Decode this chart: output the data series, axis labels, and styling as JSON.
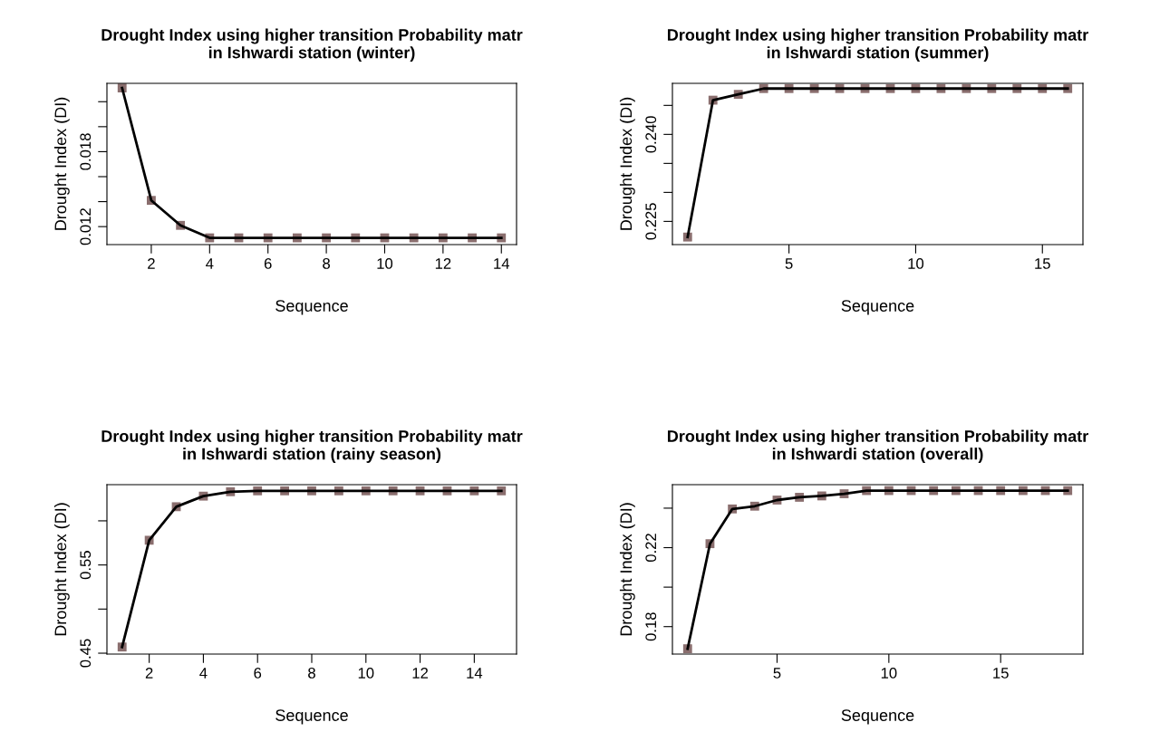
{
  "chart_data": [
    {
      "type": "line",
      "title": "Drought Index using higher transition Probability matr\nin Ishwardi station (winter)",
      "xlabel": "Sequence",
      "ylabel": "Drought Index (DI)",
      "x": [
        1,
        2,
        3,
        4,
        5,
        6,
        7,
        8,
        9,
        10,
        11,
        12,
        13,
        14
      ],
      "xlim": [
        0.48,
        14.52
      ],
      "xticks": [
        2,
        4,
        6,
        8,
        10,
        12,
        14
      ],
      "ylim": [
        0.01056,
        0.02347
      ],
      "yticks": [
        0.012,
        {
          "value": 0.014,
          "label": null
        },
        {
          "value": 0.016,
          "label": null
        },
        0.018,
        {
          "value": 0.02,
          "label": null
        },
        {
          "value": 0.022,
          "label": null
        }
      ],
      "grid": false,
      "line_style": "solid",
      "series": [
        {
          "type": "scatter",
          "color": "#8a6e6e",
          "marker": "square",
          "values": [
            0.0231,
            0.0141,
            0.0121,
            0.0111,
            0.0111,
            0.0111,
            0.0111,
            0.0111,
            0.0111,
            0.0111,
            0.0111,
            0.0111,
            0.0111,
            0.0111
          ]
        },
        {
          "color": "#000000",
          "marker": "none",
          "values": [
            0.0231,
            0.0141,
            0.0121,
            0.0111,
            0.0111,
            0.0111,
            0.0111,
            0.0111,
            0.0111,
            0.0111,
            0.0111,
            0.0111,
            0.0111,
            0.0111
          ]
        }
      ]
    },
    {
      "type": "line",
      "title": "Drought Index using higher transition Probability matr\nin Ishwardi station (summer)",
      "xlabel": "Sequence",
      "ylabel": "Drought Index (DI)",
      "x": [
        1,
        2,
        3,
        4,
        5,
        6,
        7,
        8,
        9,
        10,
        11,
        12,
        13,
        14,
        15,
        16
      ],
      "xlim": [
        0.4,
        16.6
      ],
      "xticks": [
        5,
        10,
        15
      ],
      "ylim": [
        0.221,
        0.2488
      ],
      "yticks": [
        {
          "value": 0.225,
          "label": "0.225"
        },
        {
          "value": 0.23,
          "label": null
        },
        {
          "value": 0.235,
          "label": null
        },
        {
          "value": 0.24,
          "label": "0.240"
        },
        {
          "value": 0.245,
          "label": null
        }
      ],
      "grid": false,
      "line_style": "solid",
      "series": [
        {
          "type": "scatter",
          "color": "#8a6e6e",
          "marker": "square",
          "values": [
            0.2223,
            0.2459,
            0.2469,
            0.2479,
            0.2479,
            0.2479,
            0.2479,
            0.2479,
            0.2479,
            0.2479,
            0.2479,
            0.2479,
            0.2479,
            0.2479,
            0.2479,
            0.2479
          ]
        },
        {
          "color": "#000000",
          "marker": "none",
          "values": [
            0.2223,
            0.2459,
            0.2469,
            0.2479,
            0.2479,
            0.2479,
            0.2479,
            0.2479,
            0.2479,
            0.2479,
            0.2479,
            0.2479,
            0.2479,
            0.2479,
            0.2479,
            0.2479
          ]
        }
      ]
    },
    {
      "type": "line",
      "title": "Drought Index using higher transition Probability matr\nin Ishwardi station (rainy season)",
      "xlabel": "Sequence",
      "ylabel": "Drought Index (DI)",
      "x": [
        1,
        2,
        3,
        4,
        5,
        6,
        7,
        8,
        9,
        10,
        11,
        12,
        13,
        14,
        15
      ],
      "xlim": [
        0.44,
        15.56
      ],
      "xticks": [
        2,
        4,
        6,
        8,
        10,
        12,
        14
      ],
      "ylim": [
        0.449,
        0.641
      ],
      "yticks": [
        0.45,
        {
          "value": 0.5,
          "label": null
        },
        0.55,
        {
          "value": 0.6,
          "label": null
        }
      ],
      "grid": false,
      "line_style": "solid",
      "series": [
        {
          "type": "scatter",
          "color": "#8a6e6e",
          "marker": "square",
          "values": [
            0.457,
            0.578,
            0.616,
            0.628,
            0.633,
            0.634,
            0.634,
            0.634,
            0.634,
            0.634,
            0.634,
            0.634,
            0.634,
            0.634,
            0.634
          ]
        },
        {
          "color": "#000000",
          "marker": "none",
          "values": [
            0.457,
            0.578,
            0.616,
            0.628,
            0.633,
            0.634,
            0.634,
            0.634,
            0.634,
            0.634,
            0.634,
            0.634,
            0.634,
            0.634,
            0.634
          ]
        }
      ]
    },
    {
      "type": "line",
      "title": "Drought Index using higher transition Probability matr\nin Ishwardi station (overall)",
      "xlabel": "Sequence",
      "ylabel": "Drought Index (DI)",
      "x": [
        1,
        2,
        3,
        4,
        5,
        6,
        7,
        8,
        9,
        10,
        11,
        12,
        13,
        14,
        15,
        16,
        17,
        18
      ],
      "xlim": [
        0.32,
        18.68
      ],
      "xticks": [
        5,
        10,
        15
      ],
      "ylim": [
        0.1661,
        0.2519
      ],
      "yticks": [
        0.18,
        {
          "value": 0.2,
          "label": null
        },
        0.22,
        {
          "value": 0.24,
          "label": null
        }
      ],
      "grid": false,
      "line_style": "solid",
      "series": [
        {
          "type": "scatter",
          "color": "#8a6e6e",
          "marker": "square",
          "values": [
            0.1688,
            0.222,
            0.2396,
            0.241,
            0.2441,
            0.2455,
            0.2462,
            0.2473,
            0.2489,
            0.2489,
            0.2489,
            0.2489,
            0.2489,
            0.2489,
            0.2489,
            0.2489,
            0.2489,
            0.2489
          ]
        },
        {
          "color": "#000000",
          "marker": "none",
          "values": [
            0.1688,
            0.222,
            0.2396,
            0.241,
            0.2441,
            0.2455,
            0.2462,
            0.2473,
            0.2489,
            0.2489,
            0.2489,
            0.2489,
            0.2489,
            0.2489,
            0.2489,
            0.2489,
            0.2489,
            0.2489
          ]
        }
      ]
    }
  ]
}
